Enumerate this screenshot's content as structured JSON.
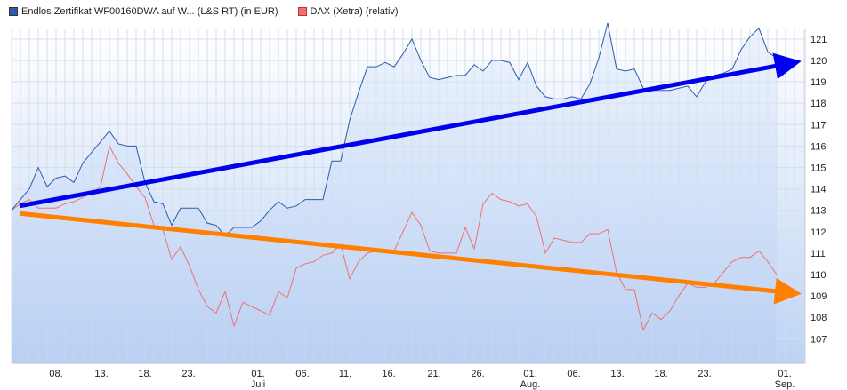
{
  "chart_data": {
    "type": "line",
    "title": "",
    "legend_position": "top-left",
    "grid": true,
    "series": [
      {
        "name": "Endlos Zertifikat WF00160DWA auf W... (L&S RT) (in EUR)",
        "color": "#2a5caa",
        "values": [
          113.0,
          113.5,
          114.0,
          115.0,
          114.1,
          114.5,
          114.6,
          114.3,
          115.2,
          115.7,
          116.2,
          116.7,
          116.1,
          116.0,
          116.0,
          114.3,
          113.4,
          113.3,
          112.3,
          113.1,
          113.1,
          113.1,
          112.4,
          112.3,
          111.8,
          112.2,
          112.2,
          112.2,
          112.5,
          113.0,
          113.4,
          113.1,
          113.2,
          113.5,
          113.5,
          113.5,
          115.3,
          115.3,
          117.2,
          118.5,
          119.7,
          119.7,
          119.9,
          119.7,
          120.3,
          121.0,
          120.0,
          119.2,
          119.1,
          119.2,
          119.3,
          119.3,
          119.8,
          119.5,
          120.0,
          120.0,
          119.9,
          119.1,
          119.9,
          118.8,
          118.3,
          118.2,
          118.2,
          118.3,
          118.2,
          118.9,
          120.1,
          121.75,
          119.6,
          119.5,
          119.6,
          118.7,
          118.6,
          118.6,
          118.6,
          118.7,
          118.8,
          118.3,
          119.0,
          119.3,
          119.4,
          119.6,
          120.5,
          121.1,
          121.5,
          120.4,
          120.1
        ]
      },
      {
        "name": "DAX (Xetra) (relativ)",
        "color": "#f07070",
        "values": [
          113.0,
          113.3,
          113.5,
          113.1,
          113.1,
          113.1,
          113.3,
          113.4,
          113.6,
          113.8,
          114.1,
          116.0,
          115.2,
          114.7,
          114.1,
          113.6,
          112.3,
          112.1,
          110.7,
          111.3,
          110.4,
          109.3,
          108.5,
          108.2,
          109.2,
          107.6,
          108.7,
          108.5,
          108.3,
          108.1,
          109.2,
          108.9,
          110.3,
          110.5,
          110.6,
          110.9,
          111.0,
          111.4,
          109.8,
          110.6,
          111.0,
          111.1,
          111.1,
          111.1,
          112.0,
          112.9,
          112.3,
          111.1,
          111.0,
          111.0,
          111.0,
          112.2,
          111.2,
          113.3,
          113.8,
          113.5,
          113.4,
          113.2,
          113.3,
          112.7,
          111.0,
          111.7,
          111.6,
          111.5,
          111.5,
          111.9,
          111.9,
          112.1,
          110.1,
          109.3,
          109.3,
          107.4,
          108.2,
          107.9,
          108.3,
          109.0,
          109.6,
          109.4,
          109.4,
          109.6,
          110.1,
          110.6,
          110.8,
          110.8,
          111.1,
          110.6,
          110.0
        ]
      }
    ],
    "x_ticks": [
      {
        "label": "08.",
        "sub": "",
        "at": 5
      },
      {
        "label": "13.",
        "sub": "",
        "at": 10.1
      },
      {
        "label": "18.",
        "sub": "",
        "at": 15
      },
      {
        "label": "23.",
        "sub": "",
        "at": 19.9
      },
      {
        "label": "01.",
        "sub": "Juli",
        "at": 27.7
      },
      {
        "label": "06.",
        "sub": "",
        "at": 32.7
      },
      {
        "label": "11.",
        "sub": "",
        "at": 37.5
      },
      {
        "label": "16.",
        "sub": "",
        "at": 42.4
      },
      {
        "label": "21.",
        "sub": "",
        "at": 47.5
      },
      {
        "label": "26.",
        "sub": "",
        "at": 52.4
      },
      {
        "label": "01.",
        "sub": "Aug.",
        "at": 58.3
      },
      {
        "label": "06.",
        "sub": "",
        "at": 63.2
      },
      {
        "label": "13.",
        "sub": "",
        "at": 68.1
      },
      {
        "label": "18.",
        "sub": "",
        "at": 73
      },
      {
        "label": "23.",
        "sub": "",
        "at": 77.9
      },
      {
        "label": "01.",
        "sub": "Sep.",
        "at": 86.9
      }
    ],
    "y_ticks": [
      107,
      108,
      109,
      110,
      111,
      112,
      113,
      114,
      115,
      116,
      117,
      118,
      119,
      120,
      121
    ],
    "xlim": [
      0,
      89.2
    ],
    "ylim": [
      105.85,
      121.45
    ],
    "annotations": [
      {
        "type": "arrow",
        "name": "uptrend-arrow",
        "color": "#0000ee",
        "from": [
          0.9,
          113.2
        ],
        "to": [
          88.7,
          119.95
        ]
      },
      {
        "type": "arrow",
        "name": "downtrend-arrow",
        "color": "#ff8000",
        "from": [
          0.9,
          112.85
        ],
        "to": [
          88.7,
          109.1
        ]
      }
    ]
  }
}
